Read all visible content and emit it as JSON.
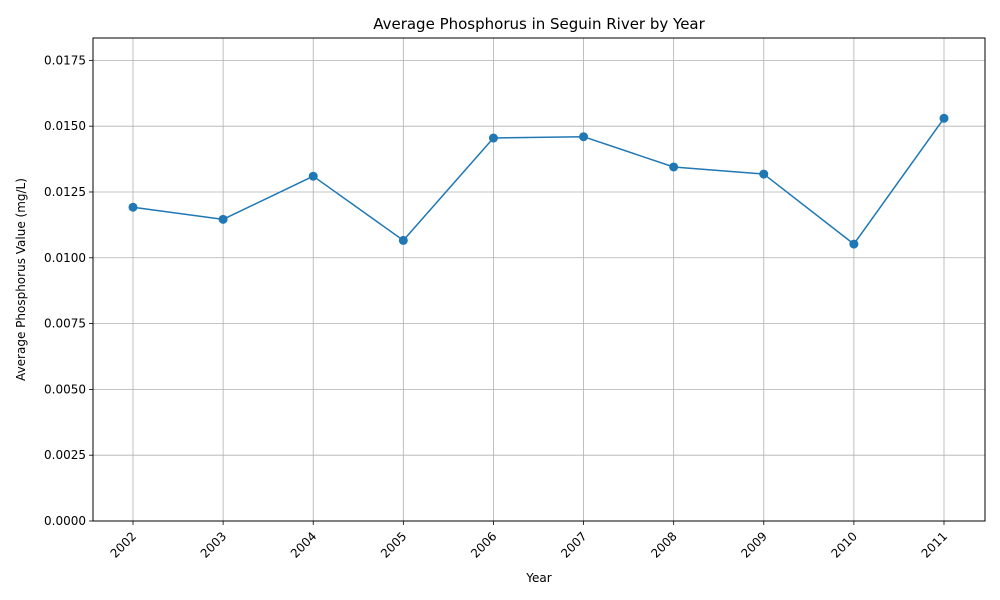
{
  "chart_data": {
    "type": "line",
    "title": "Average Phosphorus in Seguin River by Year",
    "xlabel": "Year",
    "ylabel": "Average Phosphorus Value (mg/L)",
    "x": [
      "2002",
      "2003",
      "2004",
      "2005",
      "2006",
      "2007",
      "2008",
      "2009",
      "2010",
      "2011"
    ],
    "series": [
      {
        "values": [
          0.01192,
          0.01146,
          0.0131,
          0.01066,
          0.01455,
          0.0146,
          0.01345,
          0.01318,
          0.01052,
          0.0153
        ]
      }
    ],
    "ylim": [
      0,
      0.01835
    ],
    "yticks": [
      "0.0000",
      "0.0025",
      "0.0050",
      "0.0075",
      "0.0100",
      "0.0125",
      "0.0150",
      "0.0175"
    ],
    "grid": true,
    "line_color": "#1f77b4",
    "marker": "circle"
  }
}
